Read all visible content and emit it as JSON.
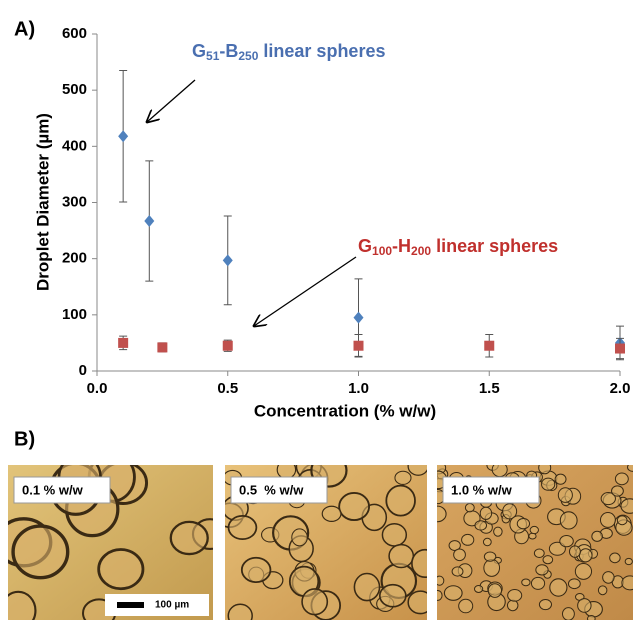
{
  "chart_data": {
    "type": "scatter",
    "panel_label": "A)",
    "xlabel": "Concentration (% w/w)",
    "ylabel": "Droplet Diameter (µm)",
    "xlim": [
      0,
      2
    ],
    "ylim": [
      0,
      600
    ],
    "xticks": [
      {
        "value": 0,
        "label": "0.0"
      },
      0.5,
      {
        "value": 1,
        "label": "1.0"
      },
      1.5,
      {
        "value": 2,
        "label": "2.0"
      }
    ],
    "yticks": [
      0,
      100,
      200,
      300,
      400,
      500,
      600
    ],
    "series": [
      {
        "label_parts": [
          {
            "text": "G"
          },
          {
            "text": "51",
            "sub": true
          },
          {
            "text": "-B"
          },
          {
            "text": "250",
            "sub": true
          },
          {
            "text": " linear spheres"
          }
        ],
        "color": "#4f81bd",
        "marker": "diamond",
        "x": [
          0.1,
          0.2,
          0.5,
          1.0,
          2.0
        ],
        "values": [
          418,
          267,
          197,
          95,
          50
        ],
        "errors": [
          117,
          107,
          79,
          69,
          30
        ]
      },
      {
        "label_parts": [
          {
            "text": "G"
          },
          {
            "text": "100",
            "sub": true
          },
          {
            "text": "-H"
          },
          {
            "text": "200",
            "sub": true
          },
          {
            "text": " linear spheres"
          }
        ],
        "color": "#c0504d",
        "marker": "square",
        "x": [
          0.1,
          0.25,
          0.5,
          1.0,
          1.5,
          2.0
        ],
        "values": [
          50,
          42,
          45,
          45,
          45,
          40
        ],
        "errors": [
          12,
          8,
          10,
          20,
          20,
          18
        ]
      }
    ]
  },
  "panel_b": {
    "label": "B)",
    "images": [
      {
        "label": "0.1 % w/w"
      },
      {
        "label": "0.5  % w/w"
      },
      {
        "label": "1.0 % w/w"
      }
    ],
    "scale_bar": "100 µm"
  }
}
